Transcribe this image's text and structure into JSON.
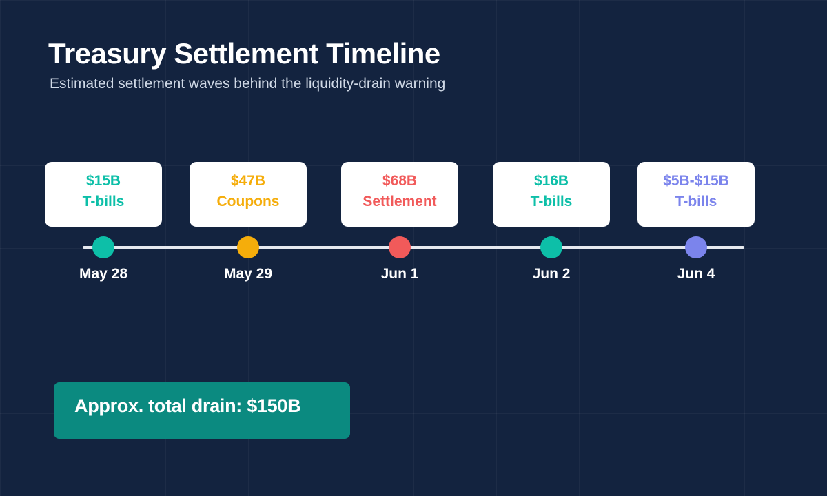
{
  "title": "Treasury Settlement Timeline",
  "subtitle": "Estimated settlement waves behind the liquidity-drain warning",
  "events": [
    {
      "date": "May 28",
      "amount": "$15B",
      "label": "T-bills",
      "color": "#0dbfa8"
    },
    {
      "date": "May 29",
      "amount": "$47B",
      "label": "Coupons",
      "color": "#f5ad0b"
    },
    {
      "date": "Jun 1",
      "amount": "$68B",
      "label": "Settlement",
      "color": "#f15a5a"
    },
    {
      "date": "Jun 2",
      "amount": "$16B",
      "label": "T-bills",
      "color": "#0dbfa8"
    },
    {
      "date": "Jun 4",
      "amount": "$5B-$15B",
      "label": "T-bills",
      "color": "#7b84ec"
    }
  ],
  "total": {
    "label": "Approx. total drain: $150B",
    "color": "#0b8a80"
  },
  "timeline_color": "#e6e9ef"
}
